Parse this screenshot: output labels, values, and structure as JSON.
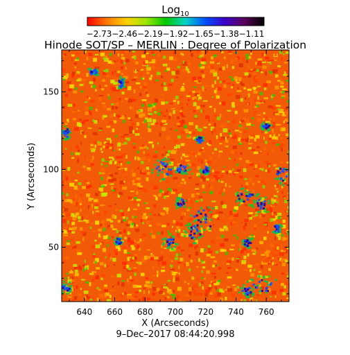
{
  "title": "Hinode SOT/SP – MERLIN : Degree of Polarization",
  "timestamp": "9–Dec–2017 08:44:20.998",
  "colorbar": {
    "label_base": "Log",
    "label_sub": "10",
    "tick_labels": [
      "−2.73",
      "−2.46",
      "−2.19",
      "−1.92",
      "−1.65",
      "−1.38",
      "−1.11"
    ],
    "colors": [
      "#ff0000",
      "#ff7a00",
      "#ffd200",
      "#9be600",
      "#00c800",
      "#00d2c8",
      "#0050ff",
      "#3c00c8",
      "#5a005a",
      "#000000"
    ]
  },
  "axes": {
    "xlabel": "X (Arcseconds)",
    "ylabel": "Y (Arcseconds)",
    "xticks": [
      "640",
      "660",
      "680",
      "700",
      "720",
      "740",
      "760"
    ],
    "yticks": [
      "50",
      "100",
      "150"
    ],
    "xrange": [
      625,
      775
    ],
    "yrange": [
      15,
      177
    ]
  }
}
